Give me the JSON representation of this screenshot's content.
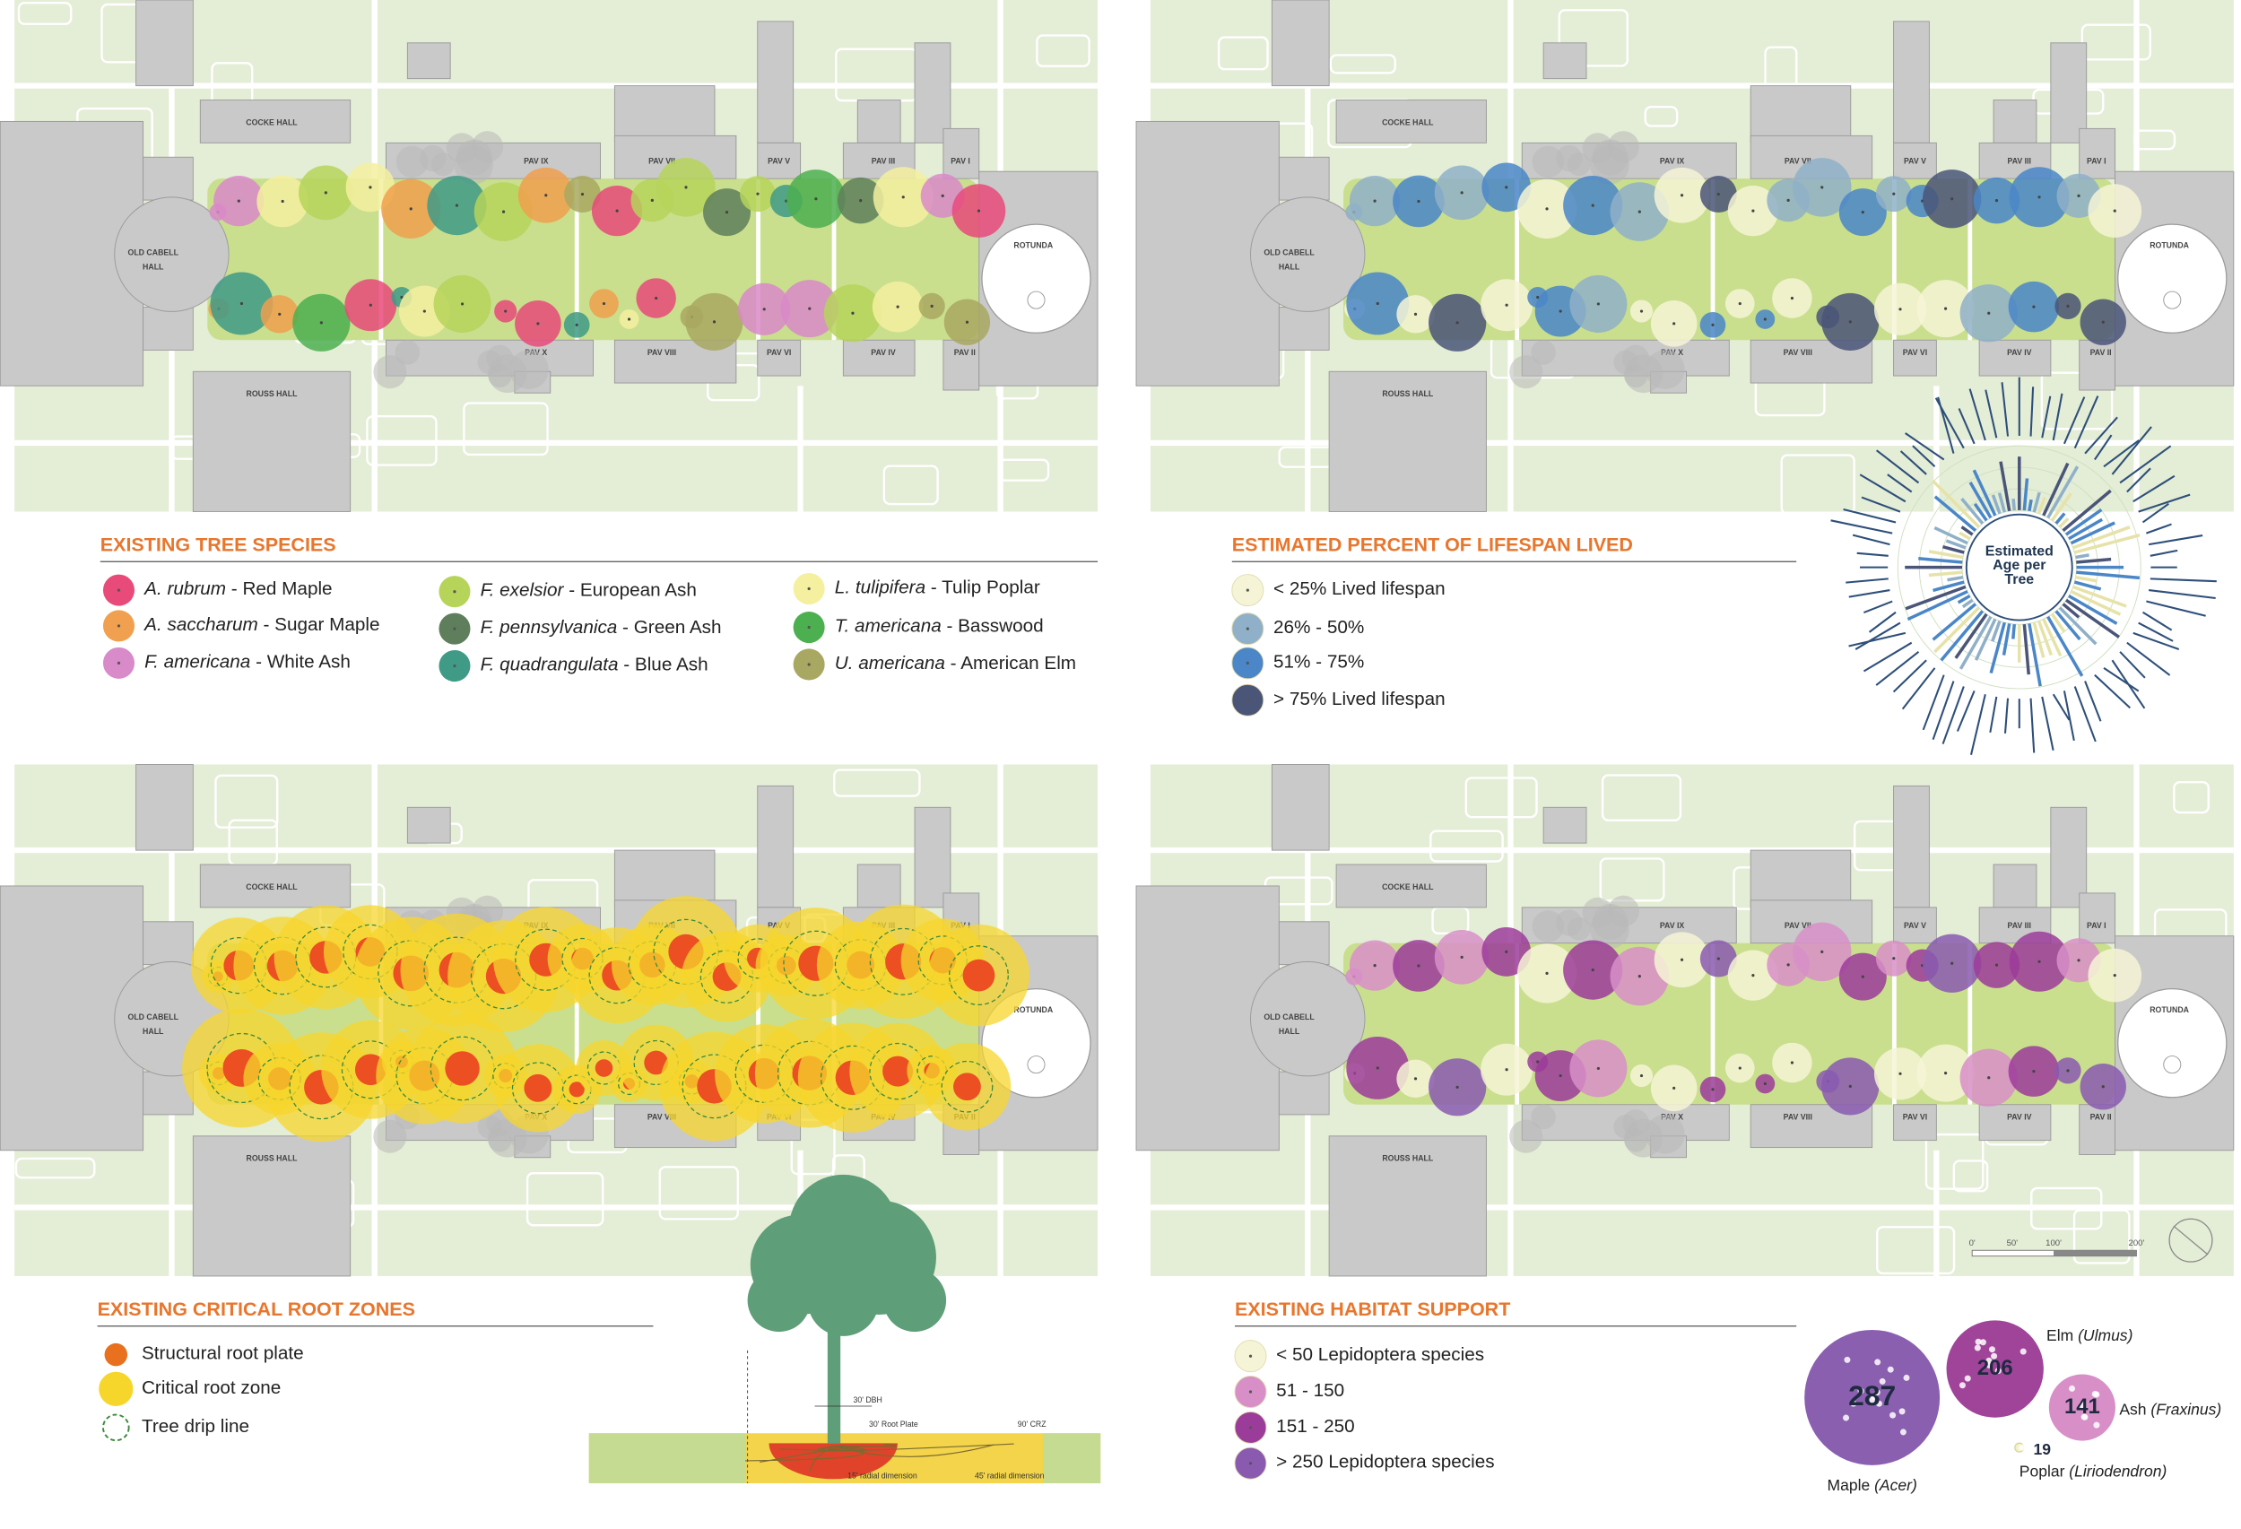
{
  "map_labels": [
    "COCKE HALL",
    "OLD CABELL",
    "HALL",
    "ROUSS HALL",
    "ROTUNDA",
    "PAV IX",
    "PAV VII",
    "PAV V",
    "PAV III",
    "PAV I",
    "PAV X",
    "PAV VIII",
    "PAV VI",
    "PAV IV",
    "PAV II"
  ],
  "panels": [
    {
      "title": "EXISTING TREE SPECIES",
      "legend": [
        {
          "latin": "A. rubrum",
          "common": " - Red Maple",
          "color": "#e84a7a"
        },
        {
          "latin": "A. saccharum",
          "common": " - Sugar Maple",
          "color": "#f0a04e"
        },
        {
          "latin": "F. americana",
          "common": " - White Ash",
          "color": "#d98ac8"
        },
        {
          "latin": "F. exelsior",
          "common": " - European Ash",
          "color": "#b6d45a"
        },
        {
          "latin": "F. pennsylvanica",
          "common": " - Green Ash",
          "color": "#5f7f5c"
        },
        {
          "latin": "F. quadrangulata",
          "common": " - Blue Ash",
          "color": "#3f9a86"
        },
        {
          "latin": "L. tulipifera",
          "common": " - Tulip Poplar",
          "color": "#f4f0a0"
        },
        {
          "latin": "T. americana",
          "common": " - Basswood",
          "color": "#4caf50"
        },
        {
          "latin": "U. americana",
          "common": " - American Elm",
          "color": "#a9a862"
        }
      ]
    },
    {
      "title": "ESTIMATED PERCENT OF LIFESPAN LIVED",
      "legend": [
        {
          "common": "< 25% Lived lifespan",
          "color": "#f6f4d6"
        },
        {
          "common": "26% - 50%",
          "color": "#8fb0c8"
        },
        {
          "common": "51% - 75%",
          "color": "#4a86c8"
        },
        {
          "common": "> 75% Lived lifespan",
          "color": "#4a5578"
        }
      ],
      "radial_title": [
        "Estimated",
        "Age per",
        "Tree"
      ]
    },
    {
      "title": "EXISTING CRITICAL ROOT ZONES",
      "legend": [
        {
          "common": "Structural root plate",
          "color": "#e8701e"
        },
        {
          "common": "Critical root zone",
          "color": "#f7d62c"
        },
        {
          "common": "Tree drip line",
          "color": "#3a8a3a"
        }
      ],
      "diagram_labels": [
        "30' DBH",
        "30' Root Plate",
        "90' CRZ",
        "15' radial dimension",
        "45' radial dimension"
      ]
    },
    {
      "title": "EXISTING HABITAT SUPPORT",
      "legend": [
        {
          "common": "< 50 Lepidoptera species",
          "color": "#f6f4d6"
        },
        {
          "common": "51 - 150",
          "color": "#d88fc8"
        },
        {
          "common": "151 - 250",
          "color": "#9c3c9a"
        },
        {
          "common": "> 250 Lepidoptera species",
          "color": "#8a5ab0"
        }
      ],
      "habitat": [
        {
          "value": 287,
          "name": "Maple ",
          "genus": "(Acer)",
          "color": "#8b5fb0"
        },
        {
          "value": 206,
          "name": "Elm ",
          "genus": "(Ulmus)",
          "color": "#a0449a"
        },
        {
          "value": 141,
          "name": "Ash ",
          "genus": "(Fraxinus)",
          "color": "#d88fc8"
        },
        {
          "value": 19,
          "name": "Poplar ",
          "genus": "(Liriodendron)",
          "color": "#f6f2c8"
        }
      ],
      "scale_labels": [
        "0'",
        "50'",
        "100'",
        "200'"
      ]
    }
  ]
}
